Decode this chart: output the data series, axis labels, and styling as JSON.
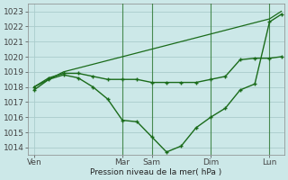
{
  "xlabel": "Pression niveau de la mer( hPa )",
  "ylim": [
    1013.5,
    1023.5
  ],
  "yticks": [
    1014,
    1015,
    1016,
    1017,
    1018,
    1019,
    1020,
    1021,
    1022,
    1023
  ],
  "xtick_labels": [
    "Ven",
    "Mar",
    "Sam",
    "Dim",
    "Lun"
  ],
  "xtick_positions": [
    0.0,
    3.0,
    4.0,
    6.0,
    8.0
  ],
  "xlim": [
    -0.2,
    8.5
  ],
  "background_color": "#cce8e8",
  "grid_color": "#aacccc",
  "line_color": "#1a6b1a",
  "line_upper_x": [
    0,
    1,
    2,
    3,
    4,
    5,
    6,
    7,
    8,
    8.4
  ],
  "line_upper_y": [
    1018.0,
    1019.0,
    1019.5,
    1020.0,
    1020.5,
    1021.0,
    1021.5,
    1022.0,
    1022.5,
    1023.0
  ],
  "line_flat_x": [
    0,
    0.5,
    1,
    1.5,
    2,
    2.5,
    3,
    3.5,
    4.0,
    4.5,
    5.0,
    5.5,
    6.0,
    6.5,
    7.0,
    7.5,
    8.0,
    8.4
  ],
  "line_flat_y": [
    1018.0,
    1018.6,
    1018.9,
    1018.9,
    1018.7,
    1018.5,
    1018.5,
    1018.5,
    1018.3,
    1018.3,
    1018.3,
    1018.3,
    1018.5,
    1018.7,
    1019.8,
    1019.9,
    1019.9,
    1020.0
  ],
  "line_dip_x": [
    0,
    0.5,
    1,
    1.5,
    2,
    2.5,
    3,
    3.5,
    4.0,
    4.5,
    5.0,
    5.5,
    6.0,
    6.5,
    7.0,
    7.5,
    8.0,
    8.4
  ],
  "line_dip_y": [
    1017.8,
    1018.5,
    1018.8,
    1018.6,
    1018.0,
    1017.2,
    1015.8,
    1015.7,
    1014.7,
    1013.7,
    1014.1,
    1015.3,
    1016.0,
    1016.6,
    1017.8,
    1018.2,
    1022.3,
    1022.8
  ],
  "vline_positions": [
    3.0,
    4.0,
    6.0,
    8.0
  ]
}
